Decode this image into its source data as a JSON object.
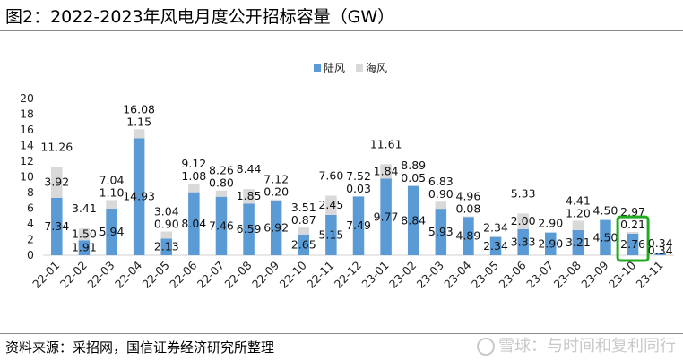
{
  "page": {
    "title": "图2：2022-2023年风电月度公开招标容量（GW）",
    "source": "资料来源：采招网，国信证券经济研究所整理",
    "watermark": "雪球：与时间和复利同行"
  },
  "colors": {
    "onshore": "#5b9bd5",
    "offshore": "#d9d9d9",
    "highlight": "#22aa22",
    "axis": "#d0d0d0"
  },
  "chart_data": {
    "type": "bar",
    "stacked": true,
    "categories": [
      "22-01",
      "22-02",
      "22-03",
      "22-04",
      "22-05",
      "22-06",
      "22-07",
      "22-08",
      "22-09",
      "22-10",
      "22-11",
      "22-12",
      "23-01",
      "23-02",
      "23-03",
      "23-04",
      "23-05",
      "23-06",
      "23-07",
      "23-08",
      "23-09",
      "23-10",
      "23-11"
    ],
    "series": [
      {
        "name": "陆风",
        "values": [
          7.34,
          1.91,
          5.94,
          14.93,
          2.13,
          8.04,
          7.46,
          6.59,
          6.92,
          2.65,
          5.15,
          7.49,
          9.77,
          8.84,
          5.93,
          4.89,
          2.34,
          3.33,
          2.9,
          3.21,
          4.5,
          2.76,
          0.34
        ],
        "labels": [
          "7.34",
          "1.91",
          "5.94",
          "14.93",
          "2.13",
          "8.04",
          "7.46",
          "6.59",
          "6.92",
          "2.65",
          "5.15",
          "7.49",
          "9.77",
          "8.84",
          "5.93",
          "4.89",
          "2.34",
          "3.33",
          "2.90",
          "3.21",
          "4.50",
          "2.76",
          "0.34"
        ]
      },
      {
        "name": "海风",
        "values": [
          3.92,
          1.5,
          1.1,
          1.15,
          0.9,
          1.08,
          0.8,
          1.85,
          0.2,
          0.87,
          2.45,
          0.03,
          1.84,
          0.05,
          0.9,
          0.08,
          0,
          2.0,
          0,
          1.2,
          0,
          0.21,
          0
        ],
        "labels": [
          "3.92",
          "1.50",
          "1.10",
          "1.15",
          "0.90",
          "1.08",
          "0.80",
          "1.85",
          "0.20",
          "0.87",
          "2.45",
          "0.03",
          "1.84",
          "0.05",
          "0.90",
          "0.08",
          "",
          "2.00",
          "",
          "1.20",
          "",
          "0.21",
          ""
        ]
      }
    ],
    "totals": [
      "11.26",
      "3.41",
      "7.04",
      "16.08",
      "3.04",
      "9.12",
      "8.26",
      "8.44",
      "7.12",
      "3.51",
      "7.60",
      "7.52",
      "11.61",
      "8.89",
      "6.83",
      "4.96",
      "2.34",
      "5.33",
      "2.90",
      "4.41",
      "4.50",
      "2.97",
      "0.34"
    ],
    "ylim": [
      0,
      20
    ],
    "yticks": [
      "0",
      "2",
      "4",
      "6",
      "8",
      "10",
      "12",
      "14",
      "16",
      "18",
      "20"
    ],
    "highlight_category": "23-10",
    "legend": [
      "陆风",
      "海风"
    ],
    "xlabel": "",
    "ylabel": ""
  }
}
